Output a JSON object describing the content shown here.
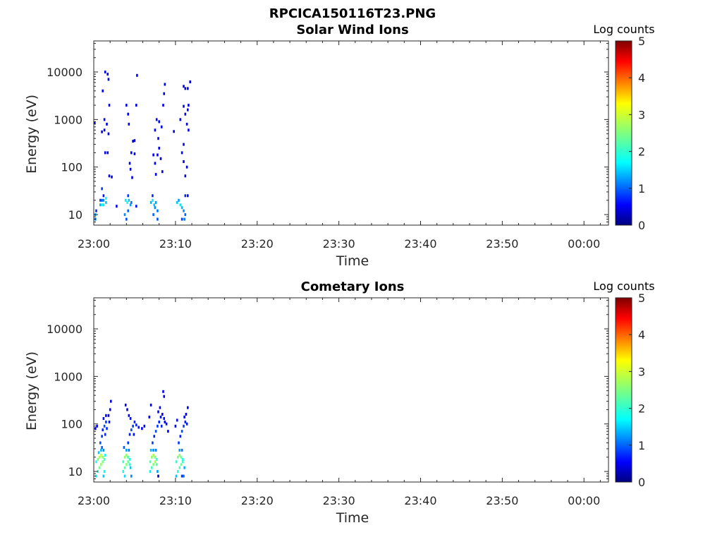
{
  "figure_title": "RPCICA150116T23.PNG",
  "chart_data": [
    {
      "type": "heatmap",
      "title": "Solar Wind Ions",
      "xlabel": "Time",
      "ylabel": "Energy (eV)",
      "x_ticks": [
        "23:00",
        "23:10",
        "23:20",
        "23:30",
        "23:40",
        "23:50",
        "00:00"
      ],
      "x_range_minutes": [
        0,
        63
      ],
      "y_scale": "log",
      "y_ticks": [
        "10",
        "100",
        "1000",
        "10000"
      ],
      "y_range_eV": [
        6,
        45000
      ],
      "colorbar": {
        "label": "Log counts",
        "range": [
          0,
          5
        ],
        "ticks": [
          "0",
          "1",
          "2",
          "3",
          "4",
          "5"
        ],
        "colormap": "jet"
      },
      "bins": [
        [
          0.2,
          8,
          1.2
        ],
        [
          0.2,
          10,
          1.4
        ],
        [
          0.3,
          12,
          0.8
        ],
        [
          0.8,
          20,
          1.0
        ],
        [
          1.0,
          20,
          1.2
        ],
        [
          1.2,
          20,
          1.3
        ],
        [
          0.8,
          16,
          1.5
        ],
        [
          1.0,
          16,
          2.0
        ],
        [
          1.2,
          16,
          1.8
        ],
        [
          1.5,
          18,
          1.6
        ],
        [
          1.5,
          22,
          1.9
        ],
        [
          1.0,
          35,
          0.9
        ],
        [
          1.2,
          25,
          0.7
        ],
        [
          1.0,
          550,
          0.6
        ],
        [
          1.3,
          600,
          0.5
        ],
        [
          1.1,
          4000,
          0.6
        ],
        [
          1.4,
          10000,
          0.5
        ],
        [
          1.7,
          9000,
          0.6
        ],
        [
          1.8,
          7000,
          0.5
        ],
        [
          1.6,
          800,
          0.5
        ],
        [
          1.3,
          1000,
          0.6
        ],
        [
          1.8,
          500,
          0.5
        ],
        [
          1.4,
          200,
          0.6
        ],
        [
          1.7,
          200,
          0.5
        ],
        [
          1.9,
          65,
          0.6
        ],
        [
          2.2,
          62,
          0.5
        ],
        [
          1.9,
          2000,
          0.5
        ],
        [
          0.1,
          850,
          0.6
        ],
        [
          2.8,
          15,
          0.6
        ],
        [
          3.8,
          10,
          1.3
        ],
        [
          4.0,
          8,
          1.0
        ],
        [
          4.2,
          12,
          1.1
        ],
        [
          3.9,
          20,
          1.8
        ],
        [
          4.1,
          18,
          2.0
        ],
        [
          4.3,
          20,
          1.6
        ],
        [
          4.5,
          16,
          1.4
        ],
        [
          4.6,
          18,
          1.2
        ],
        [
          4.2,
          25,
          0.9
        ],
        [
          4.0,
          2000,
          0.5
        ],
        [
          4.2,
          1300,
          0.6
        ],
        [
          4.3,
          800,
          0.5
        ],
        [
          4.5,
          90,
          0.6
        ],
        [
          4.4,
          120,
          0.5
        ],
        [
          4.6,
          200,
          0.6
        ],
        [
          4.8,
          350,
          0.5
        ],
        [
          5.0,
          190,
          0.6
        ],
        [
          5.2,
          2000,
          0.5
        ],
        [
          5.3,
          8500,
          0.6
        ],
        [
          4.7,
          60,
          0.5
        ],
        [
          5.0,
          360,
          0.5
        ],
        [
          5.2,
          15,
          0.7
        ],
        [
          7.0,
          18,
          1.5
        ],
        [
          7.2,
          20,
          1.8
        ],
        [
          7.4,
          16,
          1.6
        ],
        [
          7.6,
          18,
          1.4
        ],
        [
          7.8,
          12,
          1.2
        ],
        [
          7.8,
          8,
          1.0
        ],
        [
          7.3,
          10,
          1.1
        ],
        [
          7.5,
          14,
          1.3
        ],
        [
          7.2,
          25,
          0.8
        ],
        [
          7.3,
          180,
          0.6
        ],
        [
          7.5,
          120,
          0.5
        ],
        [
          7.6,
          70,
          0.6
        ],
        [
          7.8,
          180,
          0.5
        ],
        [
          8.0,
          250,
          0.6
        ],
        [
          8.2,
          150,
          0.5
        ],
        [
          8.4,
          80,
          0.6
        ],
        [
          7.9,
          400,
          0.5
        ],
        [
          7.7,
          1000,
          0.6
        ],
        [
          8.0,
          900,
          0.5
        ],
        [
          8.3,
          700,
          0.6
        ],
        [
          8.5,
          2000,
          0.5
        ],
        [
          8.6,
          3500,
          0.6
        ],
        [
          8.7,
          5500,
          0.5
        ],
        [
          7.5,
          600,
          0.6
        ],
        [
          9.8,
          560,
          0.5
        ],
        [
          10.2,
          18,
          1.6
        ],
        [
          10.4,
          20,
          1.4
        ],
        [
          10.6,
          16,
          1.8
        ],
        [
          10.8,
          14,
          1.5
        ],
        [
          11.0,
          12,
          1.3
        ],
        [
          11.2,
          10,
          1.1
        ],
        [
          10.8,
          8,
          0.9
        ],
        [
          11.1,
          8,
          1.2
        ],
        [
          11.2,
          25,
          0.8
        ],
        [
          11.5,
          25,
          0.7
        ],
        [
          10.8,
          200,
          0.6
        ],
        [
          11.0,
          130,
          0.5
        ],
        [
          11.2,
          65,
          0.6
        ],
        [
          11.4,
          100,
          0.5
        ],
        [
          11.0,
          300,
          0.6
        ],
        [
          11.2,
          1300,
          0.5
        ],
        [
          11.4,
          800,
          0.6
        ],
        [
          11.6,
          600,
          0.5
        ],
        [
          11.5,
          1600,
          0.6
        ],
        [
          11.6,
          2000,
          0.5
        ],
        [
          11.0,
          5000,
          0.6
        ],
        [
          11.2,
          4500,
          0.5
        ],
        [
          11.5,
          4500,
          0.6
        ],
        [
          11.8,
          6200,
          0.5
        ],
        [
          10.6,
          1000,
          0.5
        ],
        [
          11.0,
          1900,
          0.6
        ]
      ]
    },
    {
      "type": "heatmap",
      "title": "Cometary Ions",
      "xlabel": "Time",
      "ylabel": "Energy (eV)",
      "x_ticks": [
        "23:00",
        "23:10",
        "23:20",
        "23:30",
        "23:40",
        "23:50",
        "00:00"
      ],
      "x_range_minutes": [
        0,
        63
      ],
      "y_scale": "log",
      "y_ticks": [
        "10",
        "100",
        "1000",
        "10000"
      ],
      "y_range_eV": [
        6,
        45000
      ],
      "colorbar": {
        "label": "Log counts",
        "range": [
          0,
          5
        ],
        "ticks": [
          "0",
          "1",
          "2",
          "3",
          "4",
          "5"
        ],
        "colormap": "jet"
      },
      "bins": [
        [
          0.3,
          8,
          1.8
        ],
        [
          0.5,
          10,
          2.2
        ],
        [
          0.7,
          12,
          2.4
        ],
        [
          0.9,
          14,
          2.6
        ],
        [
          1.1,
          16,
          2.5
        ],
        [
          0.3,
          16,
          2.0
        ],
        [
          0.5,
          18,
          2.5
        ],
        [
          0.7,
          20,
          2.7
        ],
        [
          0.9,
          22,
          2.8
        ],
        [
          1.1,
          20,
          2.6
        ],
        [
          1.3,
          18,
          2.2
        ],
        [
          1.4,
          22,
          1.9
        ],
        [
          0.6,
          25,
          1.6
        ],
        [
          0.9,
          28,
          1.5
        ],
        [
          1.2,
          28,
          1.3
        ],
        [
          1.3,
          10,
          1.9
        ],
        [
          1.2,
          8,
          1.6
        ],
        [
          1.0,
          32,
          1.1
        ],
        [
          0.8,
          40,
          1.0
        ],
        [
          1.0,
          55,
          0.9
        ],
        [
          1.1,
          75,
          0.8
        ],
        [
          1.3,
          90,
          1.0
        ],
        [
          1.5,
          110,
          0.9
        ],
        [
          1.6,
          80,
          0.8
        ],
        [
          1.2,
          130,
          0.7
        ],
        [
          1.5,
          150,
          0.6
        ],
        [
          1.8,
          150,
          0.5
        ],
        [
          2.0,
          200,
          0.6
        ],
        [
          2.1,
          300,
          0.5
        ],
        [
          1.9,
          110,
          0.7
        ],
        [
          0.2,
          80,
          0.6
        ],
        [
          0.4,
          90,
          0.5
        ],
        [
          1.4,
          60,
          0.8
        ],
        [
          3.6,
          10,
          2.0
        ],
        [
          3.8,
          12,
          2.3
        ],
        [
          4.0,
          14,
          2.5
        ],
        [
          4.2,
          16,
          2.4
        ],
        [
          4.4,
          14,
          2.1
        ],
        [
          3.6,
          16,
          2.2
        ],
        [
          3.8,
          20,
          2.6
        ],
        [
          4.0,
          22,
          2.6
        ],
        [
          4.2,
          20,
          2.3
        ],
        [
          4.4,
          18,
          2.0
        ],
        [
          4.5,
          12,
          1.6
        ],
        [
          4.6,
          8,
          1.3
        ],
        [
          3.8,
          8,
          1.7
        ],
        [
          4.0,
          28,
          1.4
        ],
        [
          4.3,
          28,
          1.2
        ],
        [
          3.7,
          32,
          1.1
        ],
        [
          4.2,
          40,
          0.9
        ],
        [
          4.4,
          60,
          0.8
        ],
        [
          4.6,
          75,
          1.0
        ],
        [
          4.8,
          90,
          0.9
        ],
        [
          5.0,
          110,
          0.8
        ],
        [
          4.5,
          130,
          0.7
        ],
        [
          4.3,
          150,
          0.6
        ],
        [
          4.1,
          200,
          0.5
        ],
        [
          3.9,
          250,
          0.6
        ],
        [
          5.2,
          95,
          0.8
        ],
        [
          5.5,
          85,
          0.7
        ],
        [
          5.9,
          80,
          0.6
        ],
        [
          6.2,
          90,
          0.6
        ],
        [
          4.9,
          60,
          0.7
        ],
        [
          6.9,
          10,
          1.8
        ],
        [
          7.1,
          12,
          2.2
        ],
        [
          7.3,
          14,
          2.5
        ],
        [
          7.5,
          16,
          2.7
        ],
        [
          7.7,
          14,
          2.3
        ],
        [
          6.9,
          16,
          2.3
        ],
        [
          7.1,
          20,
          2.6
        ],
        [
          7.3,
          22,
          2.7
        ],
        [
          7.5,
          20,
          2.5
        ],
        [
          7.7,
          18,
          2.1
        ],
        [
          7.8,
          10,
          1.4
        ],
        [
          7.9,
          8,
          0.3
        ],
        [
          7.0,
          28,
          1.5
        ],
        [
          7.3,
          28,
          1.3
        ],
        [
          7.6,
          28,
          1.2
        ],
        [
          7.2,
          40,
          0.9
        ],
        [
          7.4,
          55,
          0.8
        ],
        [
          7.6,
          70,
          1.0
        ],
        [
          7.8,
          90,
          0.9
        ],
        [
          8.0,
          110,
          0.8
        ],
        [
          8.2,
          140,
          0.7
        ],
        [
          7.9,
          180,
          0.6
        ],
        [
          8.1,
          220,
          0.5
        ],
        [
          8.4,
          160,
          0.6
        ],
        [
          8.6,
          130,
          0.7
        ],
        [
          8.3,
          90,
          0.8
        ],
        [
          8.7,
          110,
          0.6
        ],
        [
          8.9,
          100,
          0.7
        ],
        [
          8.5,
          480,
          0.5
        ],
        [
          8.6,
          380,
          0.6
        ],
        [
          7.0,
          250,
          0.6
        ],
        [
          6.8,
          140,
          0.5
        ],
        [
          9.1,
          70,
          0.6
        ],
        [
          10.1,
          8,
          1.6
        ],
        [
          10.3,
          10,
          2.0
        ],
        [
          10.5,
          12,
          2.3
        ],
        [
          10.7,
          14,
          2.4
        ],
        [
          10.9,
          16,
          2.2
        ],
        [
          10.1,
          16,
          2.1
        ],
        [
          10.3,
          20,
          2.5
        ],
        [
          10.5,
          22,
          2.6
        ],
        [
          10.7,
          20,
          2.4
        ],
        [
          10.9,
          18,
          2.0
        ],
        [
          11.1,
          12,
          1.5
        ],
        [
          11.0,
          8,
          1.2
        ],
        [
          10.5,
          28,
          1.4
        ],
        [
          10.8,
          28,
          1.2
        ],
        [
          10.4,
          40,
          0.9
        ],
        [
          10.6,
          55,
          0.8
        ],
        [
          10.8,
          70,
          1.0
        ],
        [
          11.0,
          90,
          0.9
        ],
        [
          11.2,
          110,
          0.8
        ],
        [
          11.4,
          100,
          0.7
        ],
        [
          11.1,
          140,
          0.6
        ],
        [
          11.3,
          160,
          0.5
        ],
        [
          11.5,
          220,
          0.6
        ],
        [
          10.2,
          120,
          0.7
        ],
        [
          10.0,
          90,
          0.6
        ],
        [
          10.8,
          8,
          0.9
        ]
      ]
    }
  ]
}
